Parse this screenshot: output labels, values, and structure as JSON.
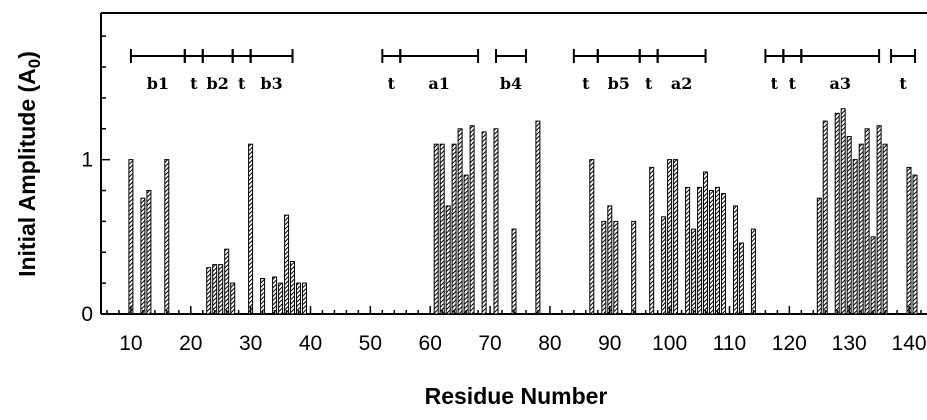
{
  "chart_data": {
    "type": "bar",
    "title": "",
    "xlabel": "Residue Number",
    "ylabel_main": "Initial Amplitude (A",
    "ylabel_sub": "0",
    "ylabel_close": ")",
    "xlim": [
      5,
      143
    ],
    "ylim": [
      0,
      1.95
    ],
    "x_ticks": [
      {
        "value": 10,
        "label": "10"
      },
      {
        "value": 20,
        "label": "20"
      },
      {
        "value": 30,
        "label": "30"
      },
      {
        "value": 40,
        "label": "40"
      },
      {
        "value": 50,
        "label": "50"
      },
      {
        "value": 60,
        "label": "60"
      },
      {
        "value": 70,
        "label": "70"
      },
      {
        "value": 80,
        "label": "80"
      },
      {
        "value": 90,
        "label": "90"
      },
      {
        "value": 100,
        "label": "100"
      },
      {
        "value": 110,
        "label": "110"
      },
      {
        "value": 120,
        "label": "120"
      },
      {
        "value": 130,
        "label": "130"
      },
      {
        "value": 140,
        "label": "140"
      }
    ],
    "y_ticks": [
      {
        "value": 0,
        "label": "0"
      },
      {
        "value": 1,
        "label": "1"
      }
    ],
    "grid": false,
    "bar_color": "#000000",
    "bars": [
      {
        "x": 10,
        "y": 1.0
      },
      {
        "x": 12,
        "y": 0.75
      },
      {
        "x": 13,
        "y": 0.8
      },
      {
        "x": 16,
        "y": 1.0
      },
      {
        "x": 23,
        "y": 0.3
      },
      {
        "x": 24,
        "y": 0.32
      },
      {
        "x": 25,
        "y": 0.32
      },
      {
        "x": 26,
        "y": 0.42
      },
      {
        "x": 27,
        "y": 0.2
      },
      {
        "x": 30,
        "y": 1.1
      },
      {
        "x": 32,
        "y": 0.23
      },
      {
        "x": 34,
        "y": 0.24
      },
      {
        "x": 35,
        "y": 0.2
      },
      {
        "x": 36,
        "y": 0.64
      },
      {
        "x": 37,
        "y": 0.34
      },
      {
        "x": 38,
        "y": 0.2
      },
      {
        "x": 39,
        "y": 0.2
      },
      {
        "x": 61,
        "y": 1.1
      },
      {
        "x": 62,
        "y": 1.1
      },
      {
        "x": 63,
        "y": 0.7
      },
      {
        "x": 64,
        "y": 1.1
      },
      {
        "x": 65,
        "y": 1.2
      },
      {
        "x": 66,
        "y": 0.9
      },
      {
        "x": 67,
        "y": 1.22
      },
      {
        "x": 69,
        "y": 1.18
      },
      {
        "x": 71,
        "y": 1.2
      },
      {
        "x": 74,
        "y": 0.55
      },
      {
        "x": 78,
        "y": 1.25
      },
      {
        "x": 87,
        "y": 1.0
      },
      {
        "x": 89,
        "y": 0.6
      },
      {
        "x": 90,
        "y": 0.7
      },
      {
        "x": 91,
        "y": 0.6
      },
      {
        "x": 94,
        "y": 0.6
      },
      {
        "x": 97,
        "y": 0.95
      },
      {
        "x": 99,
        "y": 0.63
      },
      {
        "x": 100,
        "y": 1.0
      },
      {
        "x": 101,
        "y": 1.0
      },
      {
        "x": 103,
        "y": 0.82
      },
      {
        "x": 104,
        "y": 0.55
      },
      {
        "x": 105,
        "y": 0.82
      },
      {
        "x": 106,
        "y": 0.92
      },
      {
        "x": 107,
        "y": 0.8
      },
      {
        "x": 108,
        "y": 0.82
      },
      {
        "x": 109,
        "y": 0.78
      },
      {
        "x": 111,
        "y": 0.7
      },
      {
        "x": 112,
        "y": 0.46
      },
      {
        "x": 114,
        "y": 0.55
      },
      {
        "x": 125,
        "y": 0.75
      },
      {
        "x": 126,
        "y": 1.25
      },
      {
        "x": 128,
        "y": 1.3
      },
      {
        "x": 129,
        "y": 1.33
      },
      {
        "x": 130,
        "y": 1.15
      },
      {
        "x": 131,
        "y": 1.0
      },
      {
        "x": 132,
        "y": 1.1
      },
      {
        "x": 133,
        "y": 1.2
      },
      {
        "x": 134,
        "y": 0.5
      },
      {
        "x": 135,
        "y": 1.22
      },
      {
        "x": 136,
        "y": 1.1
      },
      {
        "x": 140,
        "y": 0.95
      },
      {
        "x": 141,
        "y": 0.9
      }
    ],
    "secondary_structure": [
      {
        "label": "b1",
        "start": 10,
        "end": 19
      },
      {
        "label": "t",
        "start": 19,
        "end": 22
      },
      {
        "label": "b2",
        "start": 22,
        "end": 27
      },
      {
        "label": "t",
        "start": 27,
        "end": 30
      },
      {
        "label": "b3",
        "start": 30,
        "end": 37
      },
      {
        "label": "t",
        "start": 52,
        "end": 55
      },
      {
        "label": "a1",
        "start": 55,
        "end": 68
      },
      {
        "label": "b4",
        "start": 71,
        "end": 76
      },
      {
        "label": "t",
        "start": 84,
        "end": 88
      },
      {
        "label": "b5",
        "start": 88,
        "end": 95
      },
      {
        "label": "t",
        "start": 95,
        "end": 98
      },
      {
        "label": "a2",
        "start": 98,
        "end": 106
      },
      {
        "label": "t",
        "start": 116,
        "end": 119
      },
      {
        "label": "t",
        "start": 119,
        "end": 122
      },
      {
        "label": "a3",
        "start": 122,
        "end": 135
      },
      {
        "label": "t",
        "start": 137,
        "end": 141
      }
    ]
  }
}
